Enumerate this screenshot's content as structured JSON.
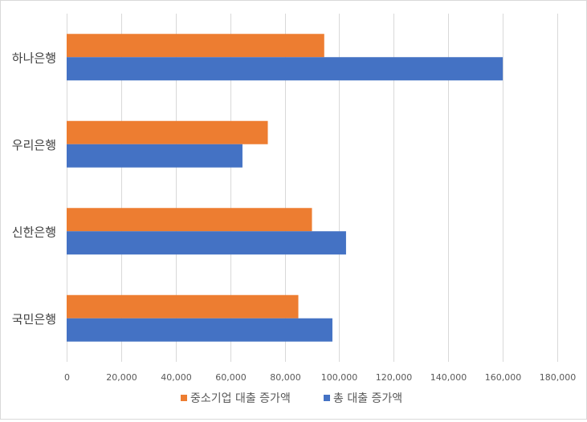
{
  "chart_data": {
    "type": "bar",
    "orientation": "horizontal",
    "categories": [
      "국민은행",
      "신한은행",
      "우리은행",
      "하나은행"
    ],
    "series": [
      {
        "name": "총 대출 증가액",
        "color": "#4472c4",
        "values": [
          97500,
          102500,
          64500,
          160000
        ]
      },
      {
        "name": "중소기업 대출 증가액",
        "color": "#ed7d31",
        "values": [
          85000,
          90000,
          73800,
          94500
        ]
      }
    ],
    "xlim": [
      0,
      180000
    ],
    "xticks": [
      "0",
      "20,000",
      "40,000",
      "60,000",
      "80,000",
      "100,000",
      "120,000",
      "140,000",
      "160,000",
      "180,000"
    ],
    "grid": true,
    "legend_position": "bottom",
    "legend": [
      "중소기업 대출 증가액",
      "총 대출 증가액"
    ],
    "title": "",
    "xlabel": "",
    "ylabel": ""
  }
}
